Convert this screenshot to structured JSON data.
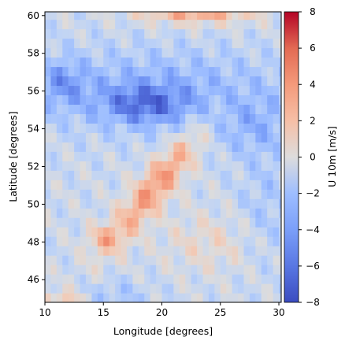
{
  "chart_data": {
    "type": "heatmap",
    "title": "",
    "xlabel": "Longitude [degrees]",
    "ylabel": "Latitude [degrees]",
    "xlim": [
      10,
      30.2
    ],
    "ylim": [
      44.8,
      60.2
    ],
    "xticks": [
      10,
      15,
      20,
      25,
      30
    ],
    "yticks": [
      46,
      48,
      50,
      52,
      54,
      56,
      58,
      60
    ],
    "grid": false,
    "colormap": "coolwarm",
    "colorbar": {
      "label": "U 10m [m/s]",
      "range": [
        -8,
        8
      ],
      "ticks": [
        -8,
        -6,
        -4,
        -2,
        0,
        2,
        4,
        6,
        8
      ]
    },
    "cell_size_degrees": 0.5,
    "field_features": [
      {
        "feature": "strong easterly core",
        "lon": [
          15,
          23
        ],
        "lat": [
          53.5,
          56.8
        ],
        "u": -7.5
      },
      {
        "feature": "easterly band",
        "lon": [
          10,
          30
        ],
        "lat": [
          53.5,
          58.5
        ],
        "u": -4
      },
      {
        "feature": "westerly jet",
        "lon": [
          15,
          23
        ],
        "lat": [
          49.5,
          52.8
        ],
        "u": 3.5
      },
      {
        "feature": "westerly patch north",
        "lon": [
          19,
          29
        ],
        "lat": [
          59.5,
          60.2
        ],
        "u": 3
      },
      {
        "feature": "westerly patch south",
        "lon": [
          10,
          13
        ],
        "lat": [
          44.8,
          45.5
        ],
        "u": 2
      },
      {
        "feature": "weak westerly",
        "lon": [
          13.5,
          16.5
        ],
        "lat": [
          47.5,
          48.8
        ],
        "u": 2.5
      }
    ]
  }
}
